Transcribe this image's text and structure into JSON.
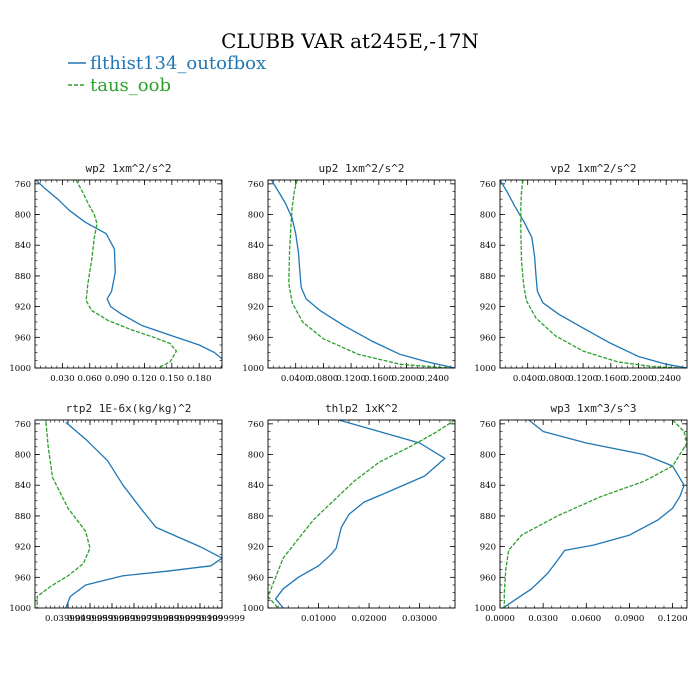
{
  "figure_title": "CLUBB VAR at245E,-17N",
  "legend": [
    {
      "label": "flthist134_outofbox",
      "color": "#1f77b4"
    },
    {
      "label": "taus_oob",
      "color": "#2ca02c"
    }
  ],
  "colors": {
    "series1": "#1f77b4",
    "series2": "#2ca02c",
    "axes": "#000000"
  },
  "chart_data": [
    {
      "type": "line",
      "title": "wp2   1xm^2/s^2",
      "xlim": [
        0.0,
        0.205
      ],
      "ylim": [
        1000,
        755
      ],
      "y_inverted": true,
      "xticks": [
        0.03,
        0.06,
        0.09,
        0.12,
        0.15,
        0.18
      ],
      "xticklabels": [
        "0.030",
        "0.060",
        "0.090",
        "0.120",
        "0.150",
        "0.180"
      ],
      "yticks": [
        760,
        800,
        840,
        880,
        920,
        960,
        1000
      ],
      "yticklabels": [
        "760",
        "800",
        "840",
        "880",
        "920",
        "960",
        "1000"
      ],
      "series": [
        {
          "name": "flthist134_outofbox",
          "color": "#1f77b4",
          "points": [
            [
              0.001,
              755
            ],
            [
              0.01,
              765
            ],
            [
              0.025,
              780
            ],
            [
              0.038,
              795
            ],
            [
              0.055,
              810
            ],
            [
              0.078,
              825
            ],
            [
              0.087,
              845
            ],
            [
              0.088,
              875
            ],
            [
              0.084,
              900
            ],
            [
              0.079,
              910
            ],
            [
              0.083,
              920
            ],
            [
              0.095,
              930
            ],
            [
              0.118,
              945
            ],
            [
              0.15,
              958
            ],
            [
              0.18,
              970
            ],
            [
              0.197,
              980
            ],
            [
              0.205,
              988
            ]
          ]
        },
        {
          "name": "taus_oob",
          "color": "#2ca02c",
          "points": [
            [
              0.045,
              755
            ],
            [
              0.052,
              770
            ],
            [
              0.058,
              785
            ],
            [
              0.065,
              800
            ],
            [
              0.068,
              812
            ],
            [
              0.065,
              830
            ],
            [
              0.062,
              860
            ],
            [
              0.058,
              890
            ],
            [
              0.056,
              912
            ],
            [
              0.062,
              925
            ],
            [
              0.08,
              938
            ],
            [
              0.105,
              950
            ],
            [
              0.13,
              960
            ],
            [
              0.148,
              968
            ],
            [
              0.155,
              978
            ],
            [
              0.148,
              992
            ],
            [
              0.135,
              1000
            ]
          ]
        }
      ]
    },
    {
      "type": "line",
      "title": "up2   1xm^2/s^2",
      "xlim": [
        0.0,
        0.27
      ],
      "ylim": [
        1000,
        755
      ],
      "y_inverted": true,
      "xticks": [
        0.04,
        0.08,
        0.12,
        0.16,
        0.2,
        0.24
      ],
      "xticklabels": [
        "0.0400",
        "0.0800",
        "0.1200",
        "0.1600",
        "0.2000",
        "0.2400"
      ],
      "yticks": [
        760,
        800,
        840,
        880,
        920,
        960,
        1000
      ],
      "yticklabels": [
        "760",
        "800",
        "840",
        "880",
        "920",
        "960",
        "1000"
      ],
      "series": [
        {
          "name": "flthist134_outofbox",
          "color": "#1f77b4",
          "points": [
            [
              0.005,
              755
            ],
            [
              0.015,
              770
            ],
            [
              0.025,
              785
            ],
            [
              0.035,
              805
            ],
            [
              0.04,
              825
            ],
            [
              0.044,
              850
            ],
            [
              0.046,
              875
            ],
            [
              0.048,
              895
            ],
            [
              0.055,
              910
            ],
            [
              0.075,
              925
            ],
            [
              0.11,
              945
            ],
            [
              0.15,
              965
            ],
            [
              0.19,
              982
            ],
            [
              0.23,
              992
            ],
            [
              0.26,
              998
            ],
            [
              0.27,
              1000
            ]
          ]
        },
        {
          "name": "taus_oob",
          "color": "#2ca02c",
          "points": [
            [
              0.042,
              755
            ],
            [
              0.038,
              770
            ],
            [
              0.035,
              790
            ],
            [
              0.033,
              815
            ],
            [
              0.031,
              850
            ],
            [
              0.03,
              890
            ],
            [
              0.035,
              915
            ],
            [
              0.05,
              940
            ],
            [
              0.08,
              962
            ],
            [
              0.13,
              982
            ],
            [
              0.19,
              995
            ],
            [
              0.26,
              1000
            ]
          ]
        }
      ]
    },
    {
      "type": "line",
      "title": "vp2   1xm^2/s^2",
      "xlim": [
        0.0,
        0.27
      ],
      "ylim": [
        1000,
        755
      ],
      "y_inverted": true,
      "xticks": [
        0.04,
        0.08,
        0.12,
        0.16,
        0.2,
        0.24
      ],
      "xticklabels": [
        "0.0400",
        "0.0800",
        "0.1200",
        "0.1600",
        "0.2000",
        "0.2400"
      ],
      "yticks": [
        760,
        800,
        840,
        880,
        920,
        960,
        1000
      ],
      "yticklabels": [
        "760",
        "800",
        "840",
        "880",
        "920",
        "960",
        "1000"
      ],
      "series": [
        {
          "name": "flthist134_outofbox",
          "color": "#1f77b4",
          "points": [
            [
              0.0,
              755
            ],
            [
              0.01,
              770
            ],
            [
              0.022,
              790
            ],
            [
              0.035,
              810
            ],
            [
              0.046,
              830
            ],
            [
              0.05,
              855
            ],
            [
              0.052,
              880
            ],
            [
              0.054,
              900
            ],
            [
              0.062,
              915
            ],
            [
              0.085,
              930
            ],
            [
              0.12,
              948
            ],
            [
              0.16,
              968
            ],
            [
              0.2,
              985
            ],
            [
              0.24,
              995
            ],
            [
              0.27,
              1000
            ]
          ]
        },
        {
          "name": "taus_oob",
          "color": "#2ca02c",
          "points": [
            [
              0.033,
              755
            ],
            [
              0.031,
              770
            ],
            [
              0.03,
              790
            ],
            [
              0.03,
              820
            ],
            [
              0.031,
              860
            ],
            [
              0.034,
              890
            ],
            [
              0.038,
              912
            ],
            [
              0.052,
              935
            ],
            [
              0.08,
              958
            ],
            [
              0.12,
              978
            ],
            [
              0.17,
              992
            ],
            [
              0.22,
              998
            ],
            [
              0.26,
              1000
            ]
          ]
        }
      ]
    },
    {
      "type": "line",
      "title": "rtp2   1E-6x(kg/kg)^2",
      "xlim": [
        0.025,
        0.11
      ],
      "ylim": [
        1000,
        755
      ],
      "y_inverted": true,
      "xticks": [
        0.04,
        0.05,
        0.06,
        0.07,
        0.08,
        0.09,
        0.1,
        0.11
      ],
      "xticklabels": [
        "0.0399999",
        "0.0499999",
        "0.0599999",
        "0.0699999",
        "0.0799999",
        "0.0899999",
        "0.0999999",
        "0.1099999"
      ],
      "yticks": [
        760,
        800,
        840,
        880,
        920,
        960,
        1000
      ],
      "yticklabels": [
        "760",
        "800",
        "840",
        "880",
        "920",
        "960",
        "1000"
      ],
      "series": [
        {
          "name": "flthist134_outofbox",
          "color": "#1f77b4",
          "points": [
            [
              0.039,
              758
            ],
            [
              0.048,
              780
            ],
            [
              0.058,
              808
            ],
            [
              0.065,
              840
            ],
            [
              0.073,
              870
            ],
            [
              0.08,
              895
            ],
            [
              0.1,
              920
            ],
            [
              0.11,
              935
            ],
            [
              0.105,
              945
            ],
            [
              0.085,
              952
            ],
            [
              0.065,
              958
            ],
            [
              0.048,
              970
            ],
            [
              0.041,
              985
            ],
            [
              0.039,
              1000
            ]
          ]
        },
        {
          "name": "taus_oob",
          "color": "#2ca02c",
          "points": [
            [
              0.03,
              758
            ],
            [
              0.031,
              790
            ],
            [
              0.033,
              830
            ],
            [
              0.04,
              870
            ],
            [
              0.048,
              900
            ],
            [
              0.05,
              922
            ],
            [
              0.047,
              942
            ],
            [
              0.04,
              958
            ],
            [
              0.032,
              972
            ],
            [
              0.026,
              985
            ],
            [
              0.026,
              1000
            ]
          ]
        }
      ]
    },
    {
      "type": "line",
      "title": "thlp2   1xK^2",
      "xlim": [
        0.0,
        0.037
      ],
      "ylim": [
        1000,
        755
      ],
      "y_inverted": true,
      "xticks": [
        0.01,
        0.02,
        0.03
      ],
      "xticklabels": [
        "0.01000",
        "0.02000",
        "0.03000"
      ],
      "yticks": [
        760,
        800,
        840,
        880,
        920,
        960,
        1000
      ],
      "yticklabels": [
        "760",
        "800",
        "840",
        "880",
        "920",
        "960",
        "1000"
      ],
      "series": [
        {
          "name": "flthist134_outofbox",
          "color": "#1f77b4",
          "points": [
            [
              0.014,
              755
            ],
            [
              0.022,
              770
            ],
            [
              0.03,
              785
            ],
            [
              0.035,
              805
            ],
            [
              0.031,
              828
            ],
            [
              0.024,
              848
            ],
            [
              0.019,
              862
            ],
            [
              0.016,
              878
            ],
            [
              0.0145,
              895
            ],
            [
              0.0135,
              922
            ],
            [
              0.0125,
              930
            ],
            [
              0.01,
              945
            ],
            [
              0.006,
              960
            ],
            [
              0.003,
              975
            ],
            [
              0.0015,
              988
            ],
            [
              0.003,
              1000
            ]
          ]
        },
        {
          "name": "taus_oob",
          "color": "#2ca02c",
          "points": [
            [
              0.037,
              755
            ],
            [
              0.033,
              772
            ],
            [
              0.028,
              790
            ],
            [
              0.022,
              810
            ],
            [
              0.017,
              835
            ],
            [
              0.013,
              860
            ],
            [
              0.009,
              885
            ],
            [
              0.006,
              910
            ],
            [
              0.003,
              935
            ],
            [
              0.0015,
              960
            ],
            [
              0.0,
              985
            ],
            [
              0.002,
              1000
            ]
          ]
        }
      ]
    },
    {
      "type": "line",
      "title": "wp3   1xm^3/s^3",
      "xlim": [
        0.0,
        0.13
      ],
      "ylim": [
        1000,
        755
      ],
      "y_inverted": true,
      "xticks": [
        0.0,
        0.03,
        0.06,
        0.09,
        0.12
      ],
      "xticklabels": [
        "0.0000",
        "0.0300",
        "0.0600",
        "0.0900",
        "0.1200"
      ],
      "yticks": [
        760,
        800,
        840,
        880,
        920,
        960,
        1000
      ],
      "yticklabels": [
        "760",
        "800",
        "840",
        "880",
        "920",
        "960",
        "1000"
      ],
      "series": [
        {
          "name": "flthist134_outofbox",
          "color": "#1f77b4",
          "points": [
            [
              0.02,
              755
            ],
            [
              0.03,
              770
            ],
            [
              0.06,
              785
            ],
            [
              0.1,
              800
            ],
            [
              0.12,
              815
            ],
            [
              0.128,
              840
            ],
            [
              0.125,
              855
            ],
            [
              0.12,
              870
            ],
            [
              0.11,
              885
            ],
            [
              0.09,
              905
            ],
            [
              0.065,
              918
            ],
            [
              0.045,
              925
            ],
            [
              0.04,
              938
            ],
            [
              0.033,
              955
            ],
            [
              0.022,
              975
            ],
            [
              0.01,
              990
            ],
            [
              0.002,
              1000
            ]
          ]
        },
        {
          "name": "taus_oob",
          "color": "#2ca02c",
          "points": [
            [
              0.12,
              755
            ],
            [
              0.128,
              770
            ],
            [
              0.13,
              785
            ],
            [
              0.125,
              800
            ],
            [
              0.12,
              815
            ],
            [
              0.1,
              835
            ],
            [
              0.07,
              855
            ],
            [
              0.04,
              880
            ],
            [
              0.015,
              905
            ],
            [
              0.006,
              925
            ],
            [
              0.004,
              950
            ],
            [
              0.003,
              980
            ],
            [
              0.003,
              1000
            ]
          ]
        }
      ]
    }
  ]
}
